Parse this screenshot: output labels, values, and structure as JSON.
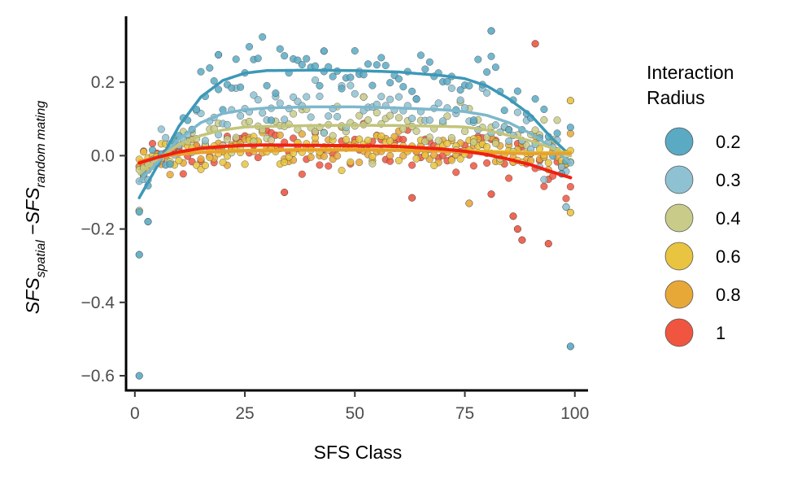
{
  "chart_data": {
    "type": "scatter",
    "xlabel": "SFS Class",
    "ylabel": {
      "base1": "SFS",
      "sub1": "spatial",
      "op": " −",
      "base2": "SFS",
      "sub2": "random mating"
    },
    "xlim": [
      -2,
      103
    ],
    "ylim": [
      -0.64,
      0.38
    ],
    "xticks": [
      0,
      25,
      50,
      75,
      100
    ],
    "xtick_labels": [
      "0",
      "25",
      "50",
      "75",
      "100"
    ],
    "yticks": [
      -0.6,
      -0.4,
      -0.2,
      0.0,
      0.2
    ],
    "ytick_labels": [
      "−0.6",
      "−0.4",
      "−0.2",
      "0.0",
      "0.2"
    ],
    "grid": false,
    "legend": {
      "title": [
        "Interaction",
        "Radius"
      ],
      "placement": "right"
    },
    "series": [
      {
        "name": "0.2",
        "color": "#5aaac4",
        "curve": {
          "x": [
            1,
            5,
            10,
            15,
            20,
            25,
            30,
            40,
            50,
            60,
            70,
            75,
            80,
            85,
            90,
            95,
            99
          ],
          "y": [
            -0.115,
            -0.03,
            0.08,
            0.16,
            0.205,
            0.225,
            0.232,
            0.233,
            0.232,
            0.228,
            0.218,
            0.21,
            0.19,
            0.155,
            0.11,
            0.045,
            0.0
          ]
        },
        "outliers": [
          {
            "x": 1,
            "y": -0.6
          },
          {
            "x": 1,
            "y": -0.27
          },
          {
            "x": 99,
            "y": -0.52
          },
          {
            "x": 81,
            "y": 0.34
          },
          {
            "x": 19,
            "y": 0.275
          },
          {
            "x": 43,
            "y": 0.285
          },
          {
            "x": 3,
            "y": -0.18
          }
        ]
      },
      {
        "name": "0.3",
        "color": "#8ec2d2",
        "curve": {
          "x": [
            1,
            5,
            10,
            15,
            20,
            25,
            30,
            40,
            50,
            60,
            70,
            75,
            80,
            85,
            90,
            95,
            99
          ],
          "y": [
            -0.07,
            -0.02,
            0.045,
            0.09,
            0.115,
            0.125,
            0.13,
            0.133,
            0.133,
            0.13,
            0.125,
            0.12,
            0.11,
            0.09,
            0.06,
            0.02,
            -0.02
          ]
        },
        "outliers": [
          {
            "x": 98,
            "y": -0.14
          }
        ]
      },
      {
        "name": "0.4",
        "color": "#c8cc88",
        "curve": {
          "x": [
            1,
            5,
            10,
            15,
            20,
            25,
            30,
            40,
            50,
            60,
            70,
            75,
            80,
            85,
            90,
            95,
            99
          ],
          "y": [
            -0.05,
            -0.01,
            0.03,
            0.055,
            0.07,
            0.078,
            0.08,
            0.082,
            0.083,
            0.082,
            0.08,
            0.078,
            0.07,
            0.055,
            0.04,
            0.02,
            0.0
          ]
        },
        "outliers": [
          {
            "x": 1,
            "y": -0.15
          },
          {
            "x": 52,
            "y": 0.16
          }
        ]
      },
      {
        "name": "0.6",
        "color": "#e8c440",
        "curve": {
          "x": [
            1,
            5,
            10,
            15,
            20,
            25,
            30,
            40,
            50,
            60,
            70,
            75,
            80,
            85,
            90,
            95,
            99
          ],
          "y": [
            -0.02,
            -0.005,
            0.005,
            0.01,
            0.013,
            0.015,
            0.016,
            0.017,
            0.017,
            0.016,
            0.015,
            0.014,
            0.012,
            0.01,
            0.008,
            0.008,
            0.01
          ]
        },
        "outliers": [
          {
            "x": 99,
            "y": 0.15
          },
          {
            "x": 99,
            "y": -0.155
          }
        ]
      },
      {
        "name": "0.8",
        "color": "#e8a838",
        "curve": {
          "x": [
            1,
            5,
            10,
            15,
            20,
            25,
            30,
            40,
            50,
            60,
            70,
            75,
            80,
            85,
            90,
            95,
            99
          ],
          "y": [
            -0.015,
            -0.005,
            0.003,
            0.008,
            0.011,
            0.013,
            0.014,
            0.015,
            0.015,
            0.014,
            0.012,
            0.01,
            0.008,
            0.006,
            0.005,
            0.005,
            0.006
          ]
        },
        "outliers": [
          {
            "x": 76,
            "y": -0.13
          },
          {
            "x": 2,
            "y": -0.055
          }
        ]
      },
      {
        "name": "1",
        "color": "#f05540",
        "curve": {
          "x": [
            1,
            5,
            10,
            15,
            20,
            25,
            30,
            40,
            50,
            60,
            70,
            75,
            80,
            85,
            90,
            95,
            99
          ],
          "y": [
            -0.02,
            -0.005,
            0.01,
            0.02,
            0.025,
            0.028,
            0.029,
            0.028,
            0.027,
            0.025,
            0.018,
            0.012,
            0.003,
            -0.01,
            -0.025,
            -0.045,
            -0.06
          ]
        },
        "outliers": [
          {
            "x": 91,
            "y": 0.305
          },
          {
            "x": 86,
            "y": -0.165
          },
          {
            "x": 87,
            "y": -0.2
          },
          {
            "x": 88,
            "y": -0.23
          },
          {
            "x": 94,
            "y": -0.24
          },
          {
            "x": 34,
            "y": -0.1
          },
          {
            "x": 81,
            "y": -0.105
          },
          {
            "x": 63,
            "y": -0.115
          }
        ]
      }
    ],
    "curve_colors": [
      "#3d98b8",
      "#7db8cc",
      "#c2c47a",
      "#e8b820",
      "#e8a030",
      "#f02010"
    ]
  }
}
